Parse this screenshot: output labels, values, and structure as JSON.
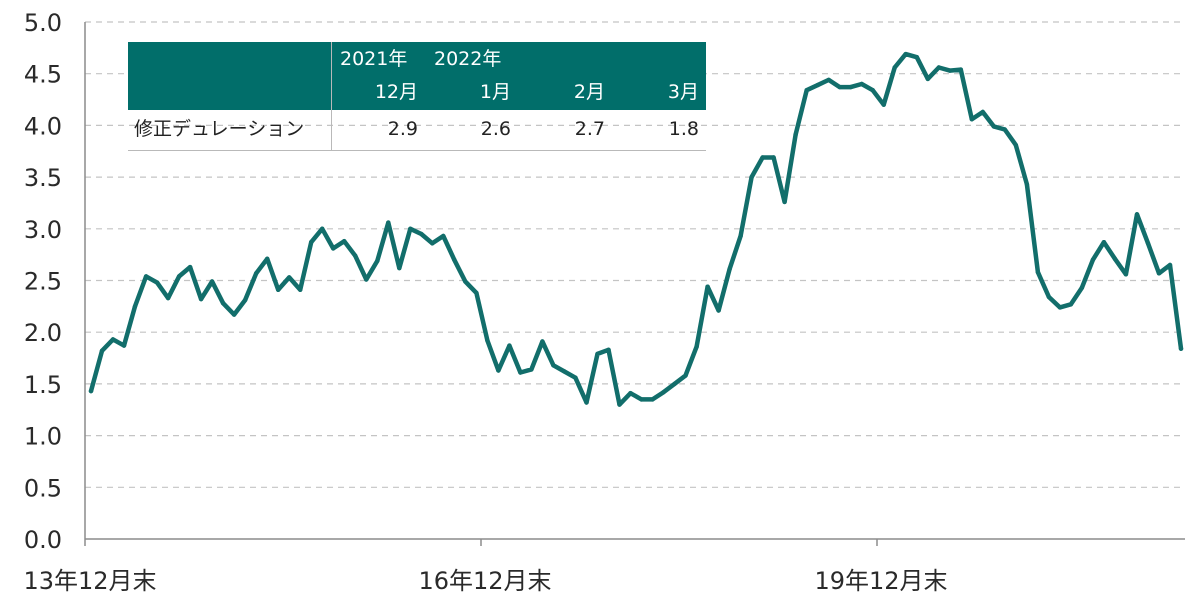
{
  "chart_data": {
    "type": "line",
    "x_tick_labels": [
      "13年12月末",
      "16年12月末",
      "19年12月末"
    ],
    "y_tick_labels": [
      "0.0",
      "0.5",
      "1.0",
      "1.5",
      "2.0",
      "2.5",
      "3.0",
      "3.5",
      "4.0",
      "4.5",
      "5.0"
    ],
    "ylim": [
      0,
      5.0
    ],
    "grid": "horizontal dashed",
    "line_color": "#126e6b",
    "series": [
      {
        "values": [
          1.43,
          1.82,
          1.93,
          1.87,
          2.25,
          2.54,
          2.48,
          2.33,
          2.54,
          2.63,
          2.32,
          2.49,
          2.28,
          2.17,
          2.31,
          2.57,
          2.71,
          2.41,
          2.53,
          2.41,
          2.87,
          3.0,
          2.81,
          2.88,
          2.74,
          2.51,
          2.69,
          3.06,
          2.62,
          3.0,
          2.95,
          2.86,
          2.93,
          2.7,
          2.49,
          2.38,
          1.92,
          1.63,
          1.87,
          1.61,
          1.64,
          1.91,
          1.68,
          1.62,
          1.56,
          1.32,
          1.79,
          1.83,
          1.3,
          1.41,
          1.35,
          1.35,
          1.42,
          1.5,
          1.58,
          1.86,
          2.44,
          2.21,
          2.61,
          2.93,
          3.5,
          3.69,
          3.69,
          3.26,
          3.91,
          4.34,
          4.39,
          4.44,
          4.37,
          4.37,
          4.4,
          4.34,
          4.2,
          4.56,
          4.69,
          4.66,
          4.45,
          4.56,
          4.53,
          4.54,
          4.06,
          4.13,
          3.99,
          3.96,
          3.81,
          3.43,
          2.58,
          2.34,
          2.24,
          2.27,
          2.43,
          2.7,
          2.87,
          2.71,
          2.56,
          3.14,
          2.86,
          2.57,
          2.65,
          1.84
        ]
      }
    ]
  },
  "inset_table": {
    "header_years": [
      "2021年",
      "2022年"
    ],
    "header_months": [
      "12月",
      "1月",
      "2月",
      "3月"
    ],
    "row_label": "修正デュレーション",
    "row_values": [
      "2.9",
      "2.6",
      "2.7",
      "1.8"
    ],
    "header_color": "#016e6a"
  }
}
